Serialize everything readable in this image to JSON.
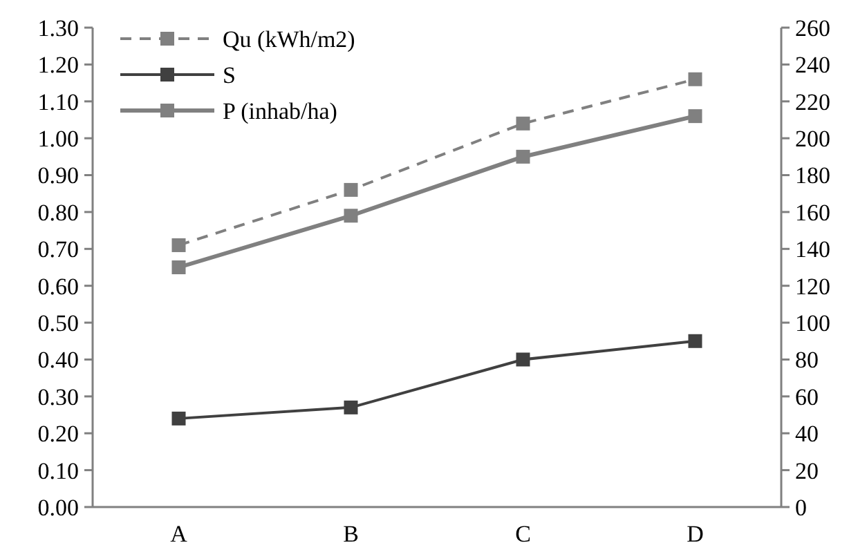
{
  "chart_data": {
    "type": "line",
    "categories": [
      "A",
      "B",
      "C",
      "D"
    ],
    "series": [
      {
        "name": "Qu (kWh/m2)",
        "color": "#808080",
        "values": [
          0.71,
          0.86,
          1.04,
          1.16
        ],
        "line_style": "dashed"
      },
      {
        "name": "S",
        "color": "#404040",
        "values": [
          0.24,
          0.27,
          0.4,
          0.45
        ],
        "line_style": "solid"
      },
      {
        "name": "P (inhab/ha)",
        "color": "#808080",
        "values": [
          130,
          158,
          190,
          212
        ],
        "axis": "y2",
        "line_style": "solid"
      }
    ],
    "ylim": [
      0,
      1.3
    ],
    "yticks": [
      {
        "value": 0,
        "label": "0.00"
      },
      {
        "value": 0.1,
        "label": "0.10"
      },
      {
        "value": 0.2,
        "label": "0.20"
      },
      {
        "value": 0.3,
        "label": "0.30"
      },
      {
        "value": 0.4,
        "label": "0.40"
      },
      {
        "value": 0.5,
        "label": "0.50"
      },
      {
        "value": 0.6,
        "label": "0.60"
      },
      {
        "value": 0.7,
        "label": "0.70"
      },
      {
        "value": 0.8,
        "label": "0.80"
      },
      {
        "value": 0.9,
        "label": "0.90"
      },
      {
        "value": 1.0,
        "label": "1.00"
      },
      {
        "value": 1.1,
        "label": "1.10"
      },
      {
        "value": 1.2,
        "label": "1.20"
      },
      {
        "value": 1.3,
        "label": "1.30"
      }
    ],
    "y2lim": [
      0,
      260
    ],
    "y2ticks": [
      0,
      20,
      40,
      60,
      80,
      100,
      120,
      140,
      160,
      180,
      200,
      220,
      240,
      260
    ],
    "marker": "square",
    "legend": "top left",
    "grid": false
  }
}
